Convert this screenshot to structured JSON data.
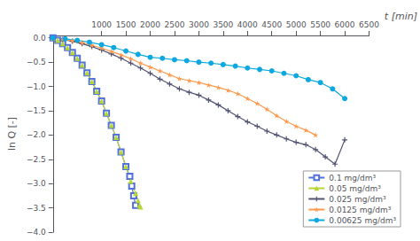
{
  "chart_data": {
    "type": "line",
    "xlabel": "t [min]",
    "ylabel": "ln Q [-]",
    "xlim": [
      0,
      6500
    ],
    "ylim": [
      -4.0,
      0.05
    ],
    "xticks": [
      1000,
      1500,
      2000,
      2500,
      3000,
      3500,
      4000,
      4500,
      5000,
      5500,
      6000,
      6500
    ],
    "yticks": [
      {
        "value": 0,
        "label": "0.0"
      },
      {
        "value": -0.5,
        "label": "−0.5"
      },
      {
        "value": -1.0,
        "label": "−1.0"
      },
      {
        "value": -1.5,
        "label": "−1.5"
      },
      {
        "value": -2.0,
        "label": "−2.0"
      },
      {
        "value": -2.5,
        "label": "−2.5"
      },
      {
        "value": -3.0,
        "label": "−3.0"
      },
      {
        "value": -3.5,
        "label": "−3.5"
      },
      {
        "value": -4.0,
        "label": "−4.0"
      }
    ],
    "grid": false,
    "legend": "lower right",
    "series": [
      {
        "name": "0.1 mg/dm³",
        "marker": "square",
        "x": [
          0,
          100,
          200,
          300,
          400,
          500,
          600,
          700,
          800,
          900,
          1000,
          1100,
          1200,
          1300,
          1400,
          1500,
          1580,
          1620,
          1660,
          1700
        ],
        "values": [
          0,
          -0.05,
          -0.12,
          -0.2,
          -0.3,
          -0.42,
          -0.56,
          -0.72,
          -0.9,
          -1.1,
          -1.3,
          -1.55,
          -1.8,
          -2.05,
          -2.35,
          -2.65,
          -2.85,
          -3.05,
          -3.25,
          -3.45
        ]
      },
      {
        "name": "0.05 mg/dm³",
        "marker": "triangle",
        "x": [
          0,
          100,
          200,
          300,
          400,
          500,
          600,
          700,
          800,
          900,
          1000,
          1100,
          1200,
          1300,
          1400,
          1500,
          1600,
          1700,
          1750,
          1780,
          1800
        ],
        "values": [
          0,
          -0.05,
          -0.12,
          -0.2,
          -0.3,
          -0.42,
          -0.56,
          -0.72,
          -0.9,
          -1.1,
          -1.3,
          -1.55,
          -1.8,
          -2.05,
          -2.35,
          -2.65,
          -2.95,
          -3.2,
          -3.35,
          -3.45,
          -3.48
        ]
      },
      {
        "name": "0.025 mg/dm³",
        "marker": "plus",
        "x": [
          0,
          200,
          400,
          600,
          800,
          1000,
          1200,
          1400,
          1600,
          1800,
          2000,
          2200,
          2400,
          2600,
          2800,
          3000,
          3200,
          3400,
          3600,
          3800,
          4000,
          4200,
          4400,
          4600,
          4800,
          5000,
          5200,
          5400,
          5600,
          5800,
          6000
        ],
        "values": [
          0,
          -0.03,
          -0.07,
          -0.12,
          -0.18,
          -0.25,
          -0.33,
          -0.42,
          -0.52,
          -0.62,
          -0.73,
          -0.85,
          -0.95,
          -1.05,
          -1.12,
          -1.18,
          -1.28,
          -1.38,
          -1.5,
          -1.62,
          -1.73,
          -1.82,
          -1.92,
          -2.0,
          -2.08,
          -2.15,
          -2.2,
          -2.3,
          -2.45,
          -2.6,
          -2.1
        ]
      },
      {
        "name": "0.0125 mg/dm³",
        "marker": "star",
        "x": [
          0,
          200,
          400,
          600,
          800,
          1000,
          1200,
          1400,
          1600,
          1800,
          2000,
          2200,
          2400,
          2600,
          2800,
          3000,
          3200,
          3400,
          3600,
          3800,
          4000,
          4200,
          4400,
          4600,
          4800,
          5000,
          5200,
          5400
        ],
        "values": [
          0,
          -0.03,
          -0.06,
          -0.1,
          -0.15,
          -0.21,
          -0.28,
          -0.35,
          -0.43,
          -0.52,
          -0.6,
          -0.68,
          -0.76,
          -0.84,
          -0.88,
          -0.92,
          -0.97,
          -1.02,
          -1.08,
          -1.15,
          -1.25,
          -1.35,
          -1.47,
          -1.6,
          -1.72,
          -1.82,
          -1.9,
          -2.0
        ]
      },
      {
        "name": "0.00625 mg/dm³",
        "marker": "circle",
        "x": [
          0,
          250,
          500,
          750,
          1000,
          1250,
          1500,
          1750,
          2000,
          2250,
          2500,
          2750,
          3000,
          3250,
          3500,
          3750,
          4000,
          4250,
          4500,
          4750,
          5000,
          5250,
          5500,
          5750,
          6000
        ],
        "values": [
          0,
          -0.02,
          -0.05,
          -0.09,
          -0.14,
          -0.2,
          -0.27,
          -0.34,
          -0.4,
          -0.42,
          -0.45,
          -0.47,
          -0.5,
          -0.52,
          -0.55,
          -0.58,
          -0.62,
          -0.65,
          -0.68,
          -0.73,
          -0.78,
          -0.86,
          -0.92,
          -1.05,
          -1.25
        ]
      }
    ]
  }
}
